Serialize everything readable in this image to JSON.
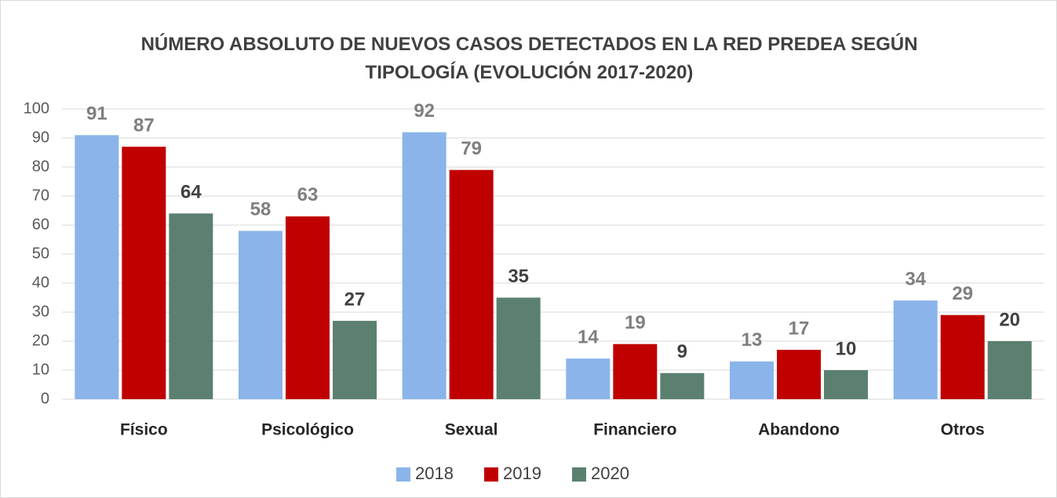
{
  "chart_data": {
    "type": "bar",
    "title": "NÚMERO ABSOLUTO DE NUEVOS CASOS DETECTADOS EN LA RED PREDEA SEGÚN TIPOLOGÍA (EVOLUCIÓN 2017-2020)",
    "categories": [
      "Físico",
      "Psicológico",
      "Sexual",
      "Financiero",
      "Abandono",
      "Otros"
    ],
    "series": [
      {
        "name": "2018",
        "color": "#8ab4ea",
        "label_color": "#7f7f7f",
        "values": [
          91,
          58,
          92,
          14,
          13,
          34
        ]
      },
      {
        "name": "2019",
        "color": "#c00000",
        "label_color": "#7f7f7f",
        "values": [
          87,
          63,
          79,
          19,
          17,
          29
        ]
      },
      {
        "name": "2020",
        "color": "#5b8070",
        "label_color": "#404040",
        "values": [
          64,
          27,
          35,
          9,
          10,
          20
        ]
      }
    ],
    "ylim": [
      0,
      100
    ],
    "yticks": [
      0,
      10,
      20,
      30,
      40,
      50,
      60,
      70,
      80,
      90,
      100
    ],
    "grid": true,
    "legend": "bottom"
  }
}
